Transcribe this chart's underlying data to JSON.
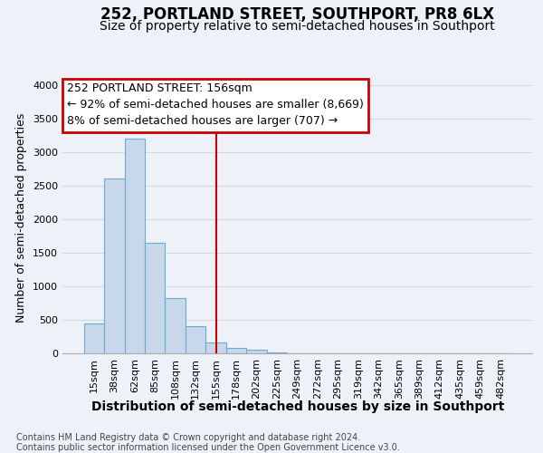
{
  "title": "252, PORTLAND STREET, SOUTHPORT, PR8 6LX",
  "subtitle": "Size of property relative to semi-detached houses in Southport",
  "xlabel": "Distribution of semi-detached houses by size in Southport",
  "ylabel": "Number of semi-detached properties",
  "footnote1": "Contains HM Land Registry data © Crown copyright and database right 2024.",
  "footnote2": "Contains public sector information licensed under the Open Government Licence v3.0.",
  "annotation_title": "252 PORTLAND STREET: 156sqm",
  "annotation_line1": "← 92% of semi-detached houses are smaller (8,669)",
  "annotation_line2": "8% of semi-detached houses are larger (707) →",
  "categories": [
    "15sqm",
    "38sqm",
    "62sqm",
    "85sqm",
    "108sqm",
    "132sqm",
    "155sqm",
    "178sqm",
    "202sqm",
    "225sqm",
    "249sqm",
    "272sqm",
    "295sqm",
    "319sqm",
    "342sqm",
    "365sqm",
    "389sqm",
    "412sqm",
    "435sqm",
    "459sqm",
    "482sqm"
  ],
  "values": [
    450,
    2600,
    3200,
    1650,
    820,
    400,
    160,
    80,
    50,
    20,
    0,
    0,
    0,
    0,
    0,
    0,
    0,
    0,
    0,
    0,
    0
  ],
  "property_line_index": 6,
  "bar_color": "#c8d8ea",
  "bar_edgecolor": "#6aabd2",
  "highlight_line_color": "#cc0000",
  "annotation_box_edgecolor": "#cc0000",
  "ylim": [
    0,
    4050
  ],
  "yticks": [
    0,
    500,
    1000,
    1500,
    2000,
    2500,
    3000,
    3500,
    4000
  ],
  "grid_color": "#d0d8e0",
  "bg_color": "#eef2f8",
  "plot_bg_color": "#eef2f8",
  "title_fontsize": 12,
  "subtitle_fontsize": 10,
  "tick_fontsize": 8,
  "ylabel_fontsize": 9,
  "xlabel_fontsize": 10,
  "annotation_fontsize": 9,
  "footnote_fontsize": 7
}
